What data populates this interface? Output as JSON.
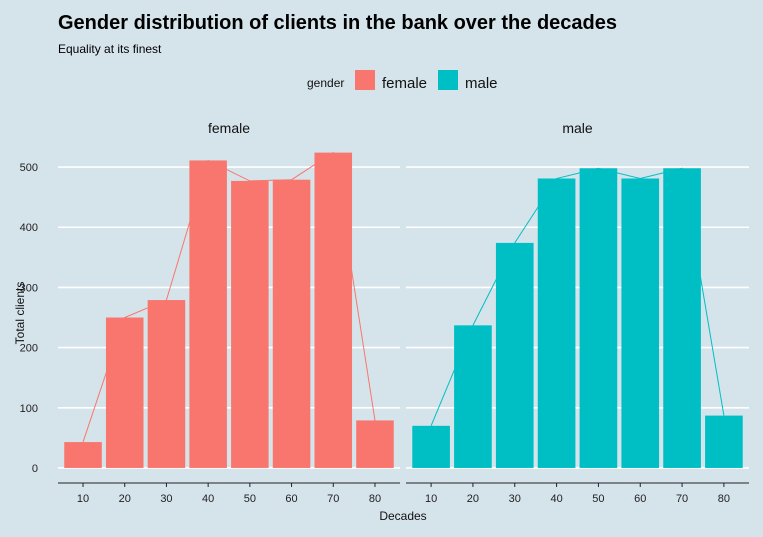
{
  "chart_data": {
    "type": "bar",
    "title": "Gender distribution of clients in the bank over the decades",
    "subtitle": "Equality at its finest",
    "xlabel": "Decades",
    "ylabel": "Total clients",
    "categories": [
      "10",
      "20",
      "30",
      "40",
      "50",
      "60",
      "70",
      "80"
    ],
    "ylim": [
      -25,
      540
    ],
    "yticks": [
      0,
      100,
      200,
      300,
      400,
      500
    ],
    "grid": true,
    "legend": {
      "title": "gender",
      "position": "top"
    },
    "overlay": "line connecting bar tops",
    "series": [
      {
        "name": "female",
        "color": "#f8766d",
        "values": [
          43,
          250,
          279,
          511,
          477,
          479,
          524,
          79
        ]
      },
      {
        "name": "male",
        "color": "#00bfc4",
        "values": [
          70,
          237,
          374,
          481,
          498,
          481,
          498,
          87
        ]
      }
    ]
  }
}
